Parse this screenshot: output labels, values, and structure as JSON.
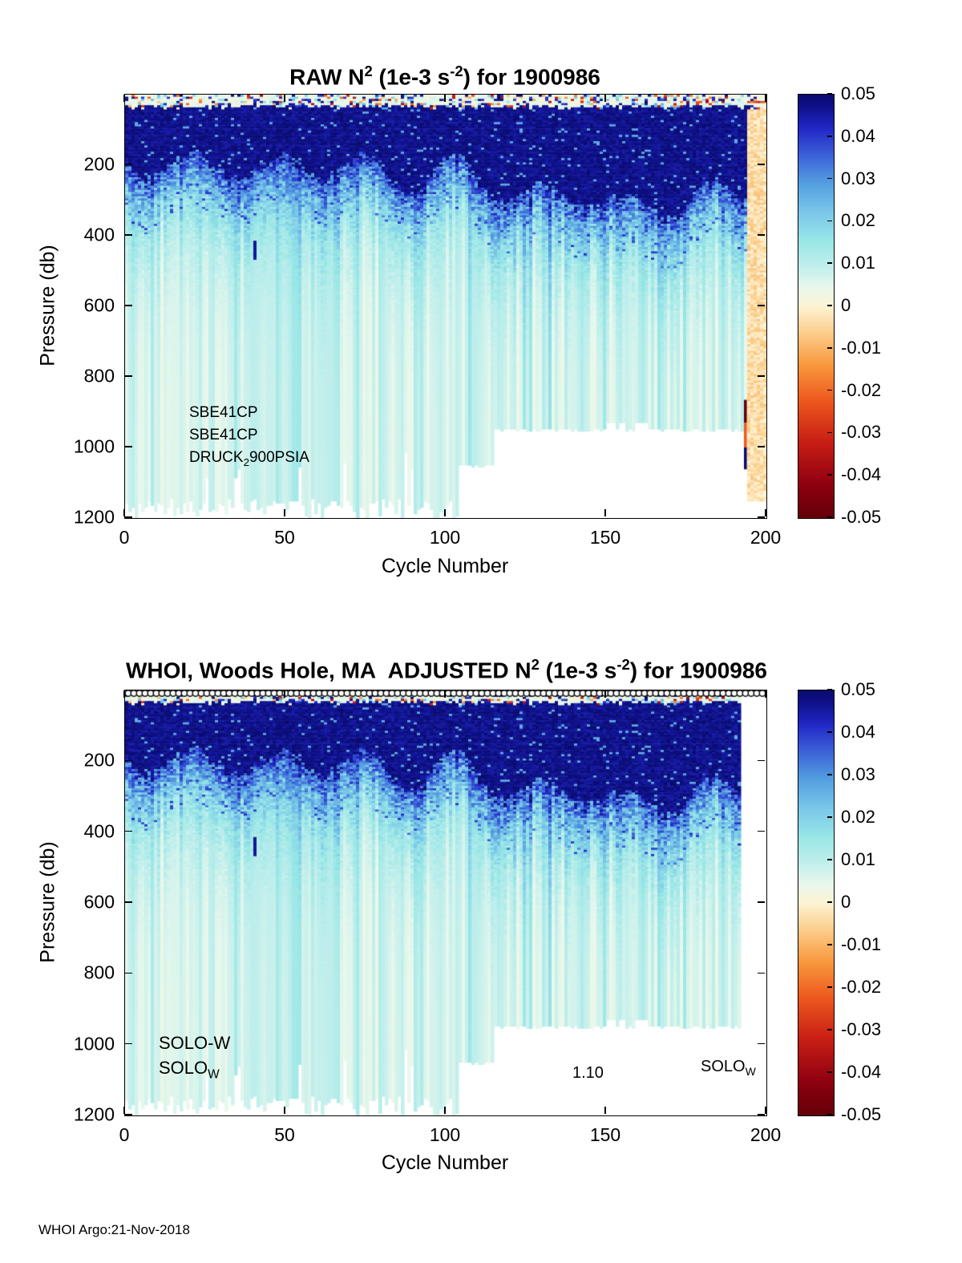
{
  "footer": "WHOI Argo:21-Nov-2018",
  "axes": {
    "x": {
      "label": "Cycle Number",
      "ticks": [
        0,
        50,
        100,
        150,
        200
      ]
    },
    "y": {
      "label": "Pressure (db)",
      "ticks": [
        200,
        400,
        600,
        800,
        1000,
        1200
      ]
    }
  },
  "colorbar_ticks": [
    "0.05",
    "0.04",
    "0.03",
    "0.02",
    "0.01",
    "0",
    "-0.01",
    "-0.02",
    "-0.03",
    "-0.04",
    "-0.05"
  ],
  "figures": [
    {
      "title": {
        "pre": "RAW N",
        "sup1": "2",
        "mid": " (1e-3 s",
        "sup2": "-2",
        "post": ") for 1900986"
      },
      "annotations": {
        "line1": "SBE41CP",
        "line2": "SBE41CP",
        "line3_pre": "DRUCK",
        "line3_sub": "2",
        "line3_post": "900PSIA"
      }
    },
    {
      "title": {
        "pre": "WHOI, Woods Hole, MA  ADJUSTED N",
        "sup1": "2",
        "mid": " (1e-3 s",
        "sup2": "-2",
        "post": ") for 1900986"
      },
      "annotations": {
        "line1": "SOLO-W",
        "line2_pre": "SOLO",
        "line2_sub": "W",
        "center_value": "1.10",
        "right_pre": "SOLO",
        "right_sub": "W"
      }
    }
  ],
  "colormap": {
    "stops": [
      [
        0.0,
        "#640008"
      ],
      [
        0.08,
        "#8f0010"
      ],
      [
        0.18,
        "#c81e14"
      ],
      [
        0.28,
        "#ee5a1e"
      ],
      [
        0.36,
        "#f8973c"
      ],
      [
        0.44,
        "#fccf8e"
      ],
      [
        0.5,
        "#fdf3d3"
      ],
      [
        0.545,
        "#e9f8ec"
      ],
      [
        0.6,
        "#bdeeec"
      ],
      [
        0.66,
        "#96e6e6"
      ],
      [
        0.72,
        "#7cc8ea"
      ],
      [
        0.79,
        "#55a0e0"
      ],
      [
        0.855,
        "#3c64d8"
      ],
      [
        0.92,
        "#2328c8"
      ],
      [
        0.965,
        "#101492"
      ],
      [
        1.0,
        "#0a0a6e"
      ]
    ]
  },
  "chart_data": [
    {
      "type": "heatmap",
      "title": "RAW N^2 (1e-3 s^-2) for 1900986",
      "xlabel": "Cycle Number",
      "ylabel": "Pressure (db)",
      "x_range": [
        0,
        200
      ],
      "y_range": [
        0,
        1200
      ],
      "y_inverted": true,
      "color_range": [
        -0.05,
        0.05
      ],
      "colorbar_ticks": [
        0.05,
        0.04,
        0.03,
        0.02,
        0.01,
        0,
        -0.01,
        -0.02,
        -0.03,
        -0.04,
        -0.05
      ],
      "regions": {
        "surface_speckle": {
          "pressure": [
            0,
            35
          ],
          "value_range": [
            -0.04,
            0.05
          ],
          "note": "thin near-zero cream layer with scattered positive and negative speckles"
        },
        "pycnocline": {
          "pressure": [
            35,
            240
          ],
          "value_range": [
            0.044,
            0.05
          ],
          "note": "dark navy band with wavy lower edge near 200-260 db, deepening to ~330 db around cycles 115-200"
        },
        "transition": {
          "pressure": [
            240,
            430
          ],
          "value_range": [
            0.012,
            0.035
          ]
        },
        "deep": {
          "pressure": [
            430,
            1200
          ],
          "value_range": [
            0.003,
            0.012
          ],
          "note": "pale cyan with faint vertical streaks"
        },
        "dark_streak": {
          "cycle": 40,
          "pressure": [
            415,
            470
          ],
          "value": 0.046
        },
        "pale_right_columns": {
          "cycles": [
            194,
            200
          ],
          "value_range": [
            -0.008,
            0.001
          ],
          "no_data_below": 1150
        },
        "anomaly_line": {
          "cycle": 193,
          "segments": [
            {
              "pressure": [
                865,
                930
              ],
              "value": -0.05
            },
            {
              "pressure": [
                930,
                1000
              ],
              "value": -0.022
            },
            {
              "pressure": [
                1000,
                1062
              ],
              "value": 0.05
            }
          ]
        },
        "no_data": [
          {
            "cycles": [
              0,
              103
            ],
            "below_pressure": 1145,
            "jagged": true
          },
          {
            "cycles": [
              104,
              114
            ],
            "below_pressure": 1048
          },
          {
            "cycles": [
              115,
              193
            ],
            "below_pressure": 946
          },
          {
            "cycles": [
              149,
              163
            ],
            "below_pressure": 928,
            "patchy": true
          }
        ]
      }
    },
    {
      "type": "heatmap",
      "title": "WHOI, Woods Hole, MA  ADJUSTED N^2 (1e-3 s^-2) for 1900986",
      "xlabel": "Cycle Number",
      "ylabel": "Pressure (db)",
      "x_range": [
        0,
        200
      ],
      "y_range": [
        0,
        1200
      ],
      "y_inverted": true,
      "color_range": [
        -0.05,
        0.05
      ],
      "colorbar_ticks": [
        0.05,
        0.04,
        0.03,
        0.02,
        0.01,
        0,
        -0.01,
        -0.02,
        -0.03,
        -0.04,
        -0.05
      ],
      "data_end_cycle": 192,
      "top_markers": true,
      "regions": {
        "surface_speckle": {
          "pressure": [
            0,
            35
          ],
          "value_range": [
            -0.04,
            0.05
          ]
        },
        "pycnocline": {
          "pressure": [
            35,
            240
          ],
          "value_range": [
            0.044,
            0.05
          ]
        },
        "transition": {
          "pressure": [
            240,
            430
          ],
          "value_range": [
            0.012,
            0.035
          ]
        },
        "deep": {
          "pressure": [
            430,
            1200
          ],
          "value_range": [
            0.003,
            0.012
          ]
        },
        "dark_streak": {
          "cycle": 40,
          "pressure": [
            415,
            470
          ],
          "value": 0.046
        },
        "no_data": [
          {
            "cycles": [
              0,
              103
            ],
            "below_pressure": 1145,
            "jagged": true
          },
          {
            "cycles": [
              104,
              114
            ],
            "below_pressure": 1048
          },
          {
            "cycles": [
              115,
              192
            ],
            "below_pressure": 946
          },
          {
            "cycles": [
              149,
              163
            ],
            "below_pressure": 928,
            "patchy": true
          }
        ]
      }
    }
  ]
}
